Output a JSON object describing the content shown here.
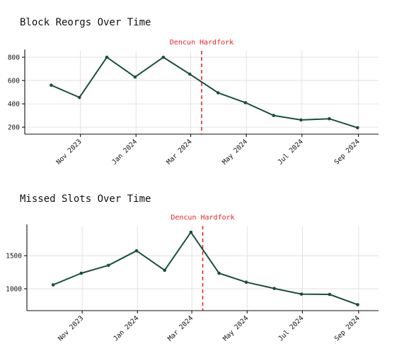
{
  "chart_data": [
    {
      "type": "line",
      "title": "Block Reorgs Over Time",
      "xlabel": "",
      "ylabel": "",
      "x": [
        "2023-09-30",
        "2023-10-31",
        "2023-11-30",
        "2023-12-31",
        "2024-01-31",
        "2024-02-29",
        "2024-03-31",
        "2024-04-30",
        "2024-05-31",
        "2024-06-30",
        "2024-07-31",
        "2024-08-31"
      ],
      "values": [
        560,
        455,
        800,
        630,
        800,
        655,
        495,
        410,
        300,
        262,
        272,
        195
      ],
      "x_ticks": [
        {
          "date": "2023-11-01",
          "label": "Nov 2023"
        },
        {
          "date": "2024-01-01",
          "label": "Jan 2024"
        },
        {
          "date": "2024-03-01",
          "label": "Mar 2024"
        },
        {
          "date": "2024-05-01",
          "label": "May 2024"
        },
        {
          "date": "2024-07-01",
          "label": "Jul 2024"
        },
        {
          "date": "2024-09-01",
          "label": "Sep 2024"
        }
      ],
      "y_ticks": [
        200,
        400,
        600,
        800
      ],
      "ylim": [
        140,
        855
      ],
      "xlim": [
        "2023-09-01",
        "2024-09-23"
      ],
      "annotation": {
        "date": "2024-03-13",
        "label": "Dencun Hardfork",
        "color": "#e8232b"
      },
      "line_color": "#17503e",
      "grid": true
    },
    {
      "type": "line",
      "title": "Missed Slots Over Time",
      "xlabel": "",
      "ylabel": "",
      "x": [
        "2023-09-30",
        "2023-10-31",
        "2023-11-30",
        "2023-12-31",
        "2024-01-31",
        "2024-02-29",
        "2024-03-31",
        "2024-04-30",
        "2024-05-31",
        "2024-06-30",
        "2024-07-31",
        "2024-08-31"
      ],
      "values": [
        1060,
        1235,
        1355,
        1575,
        1280,
        1855,
        1235,
        1100,
        1005,
        920,
        915,
        760
      ],
      "x_ticks": [
        {
          "date": "2023-11-01",
          "label": "Nov 2023"
        },
        {
          "date": "2024-01-01",
          "label": "Jan 2024"
        },
        {
          "date": "2024-03-01",
          "label": "Mar 2024"
        },
        {
          "date": "2024-05-01",
          "label": "May 2024"
        },
        {
          "date": "2024-07-01",
          "label": "Jul 2024"
        },
        {
          "date": "2024-09-01",
          "label": "Sep 2024"
        }
      ],
      "y_ticks": [
        1000,
        1500
      ],
      "ylim": [
        670,
        1950
      ],
      "xlim": [
        "2023-09-01",
        "2024-09-23"
      ],
      "annotation": {
        "date": "2024-03-13",
        "label": "Dencun Hardfork",
        "color": "#e8232b"
      },
      "line_color": "#17503e",
      "grid": true
    }
  ]
}
